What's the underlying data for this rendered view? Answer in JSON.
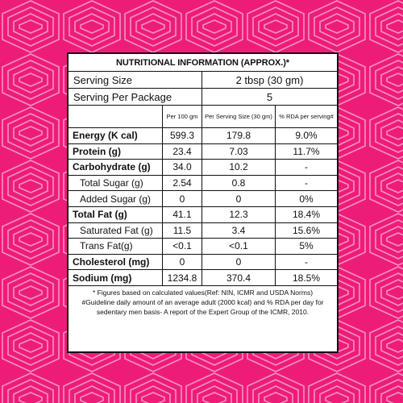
{
  "colors": {
    "background_pink": "#ee1c79",
    "panel_bg": "#ffffff",
    "text": "#111111",
    "pattern_line": "#f5a9cc"
  },
  "title": "NUTRITIONAL INFORMATION (APPROX.)*",
  "serving": {
    "size_label": "Serving Size",
    "size_value": "2 tbsp (30 gm)",
    "per_package_label": "Serving Per Package",
    "per_package_value": "5"
  },
  "columns": [
    "",
    "Per 100 gm",
    "Per Serving Size (30 gm)",
    "% RDA per serving#"
  ],
  "rows": [
    {
      "name": "Energy (K cal)",
      "per100": "599.3",
      "perServing": "179.8",
      "rda": "9.0%",
      "bold": true
    },
    {
      "name": "Protein (g)",
      "per100": "23.4",
      "perServing": "7.03",
      "rda": "11.7%",
      "bold": true
    },
    {
      "name": "Carbohydrate (g)",
      "per100": "34.0",
      "perServing": "10.2",
      "rda": "-",
      "bold": true
    },
    {
      "name": "Total Sugar (g)",
      "per100": "2.54",
      "perServing": "0.8",
      "rda": "-",
      "bold": false
    },
    {
      "name": "Added Sugar (g)",
      "per100": "0",
      "perServing": "0",
      "rda": "0%",
      "bold": false
    },
    {
      "name": "Total Fat (g)",
      "per100": "41.1",
      "perServing": "12.3",
      "rda": "18.4%",
      "bold": true
    },
    {
      "name": "Saturated Fat (g)",
      "per100": "11.5",
      "perServing": "3.4",
      "rda": "15.6%",
      "bold": false
    },
    {
      "name": "Trans Fat(g)",
      "per100": "<0.1",
      "perServing": "<0.1",
      "rda": "5%",
      "bold": false
    },
    {
      "name": "Cholesterol (mg)",
      "per100": "0",
      "perServing": "0",
      "rda": "-",
      "bold": true
    },
    {
      "name": "Sodium (mg)",
      "per100": "1234.8",
      "perServing": "370.4",
      "rda": "18.5%",
      "bold": true
    }
  ],
  "footnotes": [
    "* Figures based on calculated values(Ref: NIN, ICMR and USDA Norms)",
    "#Guideline daily amount of an average adult (2000 kcal) and % RDA per day for",
    "sedentary men basis- A report of the Expert Group of the ICMR, 2010."
  ]
}
